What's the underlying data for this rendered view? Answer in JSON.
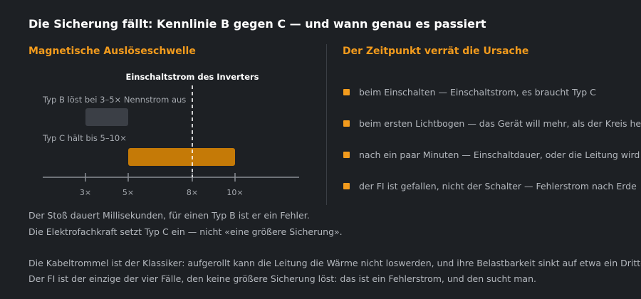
{
  "header": {
    "title": "Die Sicherung fällt: Kennlinie B gegen C — und wann genau es passiert"
  },
  "left": {
    "title": "Magnetische Auslöseschwelle",
    "marker_label": "Einschaltstrom des Inverters",
    "marker_value": 8,
    "type_b_label": "Typ B löst bei 3–5× Nennstrom aus",
    "type_c_label": "Typ C hält bis 5–10×"
  },
  "chart_data": {
    "type": "bar",
    "orientation": "horizontal-range",
    "categories": [
      "Typ B",
      "Typ C"
    ],
    "ranges": [
      [
        3,
        5
      ],
      [
        5,
        10
      ]
    ],
    "x_ticks": [
      3,
      5,
      8,
      10
    ],
    "tick_labels": [
      "3×",
      "5×",
      "8×",
      "10×"
    ],
    "xlim": [
      1,
      13
    ],
    "colors": {
      "typ_b": "#3b3f46",
      "typ_c": "#c57a07",
      "marker": "#ffffff",
      "axis": "#8a8e94"
    }
  },
  "right": {
    "title": "Der Zeitpunkt verrät die Ursache",
    "items": [
      "beim Einschalten — Einschaltstrom, es braucht Typ C",
      "beim ersten Lichtbogen — das Gerät will mehr, als der Kreis hergibt",
      "nach ein paar Minuten — Einschaltdauer, oder die Leitung wird warm",
      "der FI ist gefallen, nicht der Schalter — Fehlerstrom nach Erde"
    ],
    "bullet_color": "#f29b1d"
  },
  "notes": [
    "Der Stoß dauert Millisekunden, für einen Typ B ist er ein Fehler.",
    "Die Elektrofachkraft setzt Typ C ein — nicht «eine größere Sicherung».",
    "Die Kabeltrommel ist der Klassiker: aufgerollt kann die Leitung die Wärme nicht loswerden, und ihre Belastbarkeit sinkt auf etwa ein Drittel.",
    "Der FI ist der einzige der vier Fälle, den keine größere Sicherung löst: das ist ein Fehlerstrom, und den sucht man."
  ]
}
